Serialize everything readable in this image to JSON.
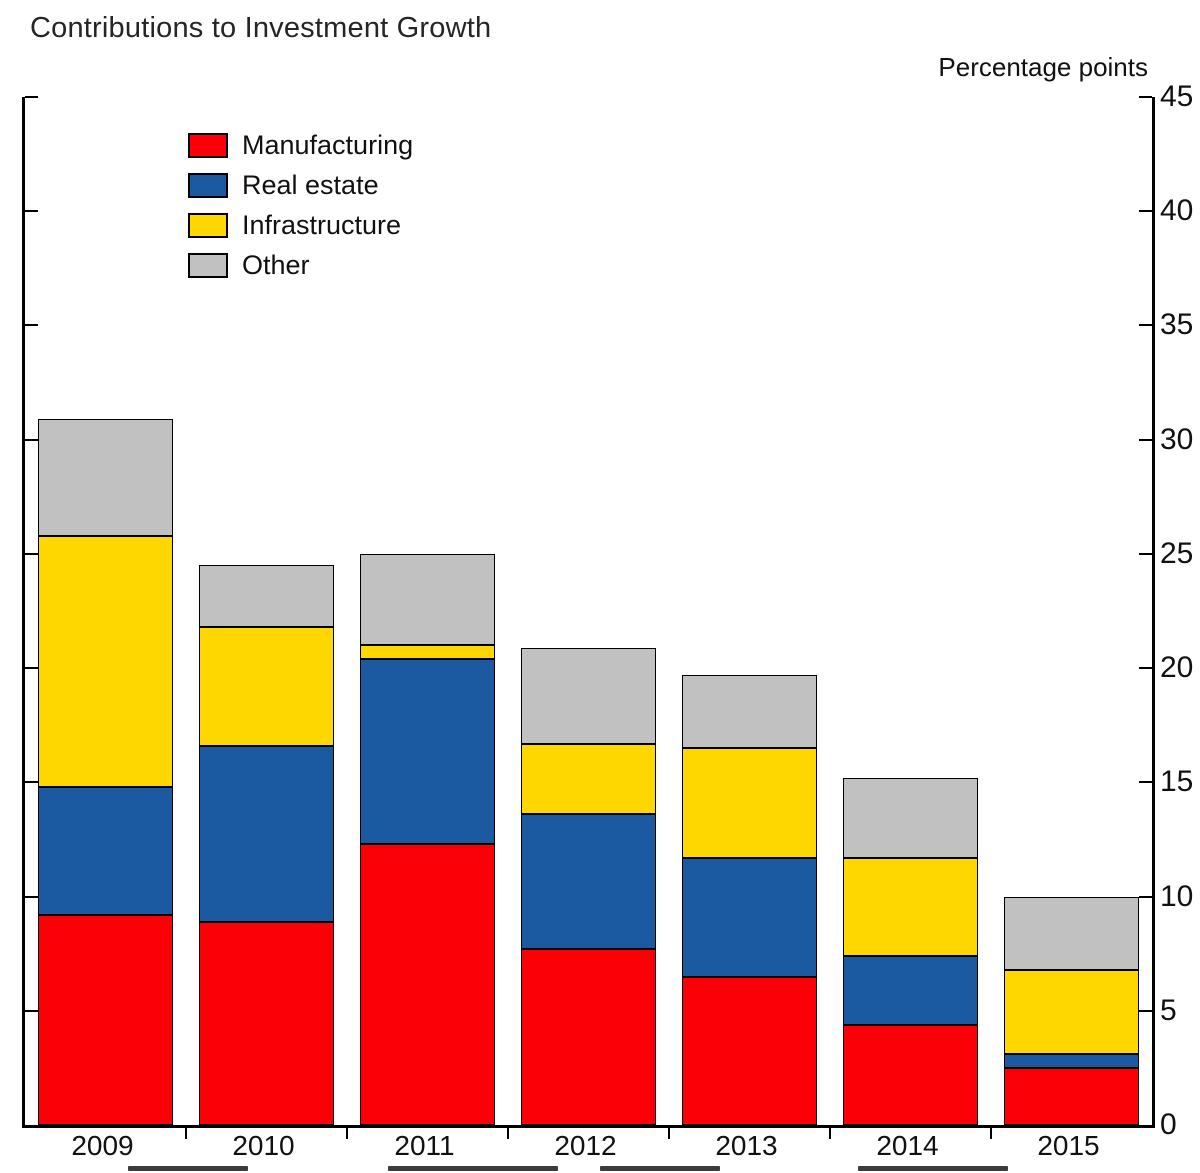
{
  "header": {
    "title": "Contributions to Investment Growth",
    "unit_label": "Percentage points"
  },
  "chart_data": {
    "type": "bar",
    "stacked": true,
    "title": "Contributions to Investment Growth",
    "unit_label": "Percentage points",
    "categories": [
      "2009",
      "2010",
      "2011",
      "2012",
      "2013",
      "2014",
      "2015"
    ],
    "series": [
      {
        "name": "Manufacturing",
        "color": "#fb0006",
        "values": [
          9.2,
          8.9,
          12.3,
          7.7,
          6.5,
          4.4,
          2.5
        ]
      },
      {
        "name": "Real estate",
        "color": "#1b5aa0",
        "values": [
          5.6,
          7.7,
          8.1,
          5.9,
          5.2,
          3.0,
          0.6
        ]
      },
      {
        "name": "Infrastructure",
        "color": "#ffd700",
        "values": [
          11.0,
          5.2,
          0.6,
          3.1,
          4.8,
          4.3,
          3.7
        ]
      },
      {
        "name": "Other",
        "color": "#c1c1c1",
        "values": [
          5.1,
          2.7,
          4.0,
          4.2,
          3.2,
          3.5,
          3.2
        ]
      }
    ],
    "ylim": [
      0,
      45
    ],
    "ytick_step": 5,
    "yticks": [
      0,
      5,
      10,
      15,
      20,
      25,
      30,
      35,
      40,
      45
    ],
    "legend_position": "top-left",
    "grid": false,
    "axis_labels_side": "right"
  }
}
